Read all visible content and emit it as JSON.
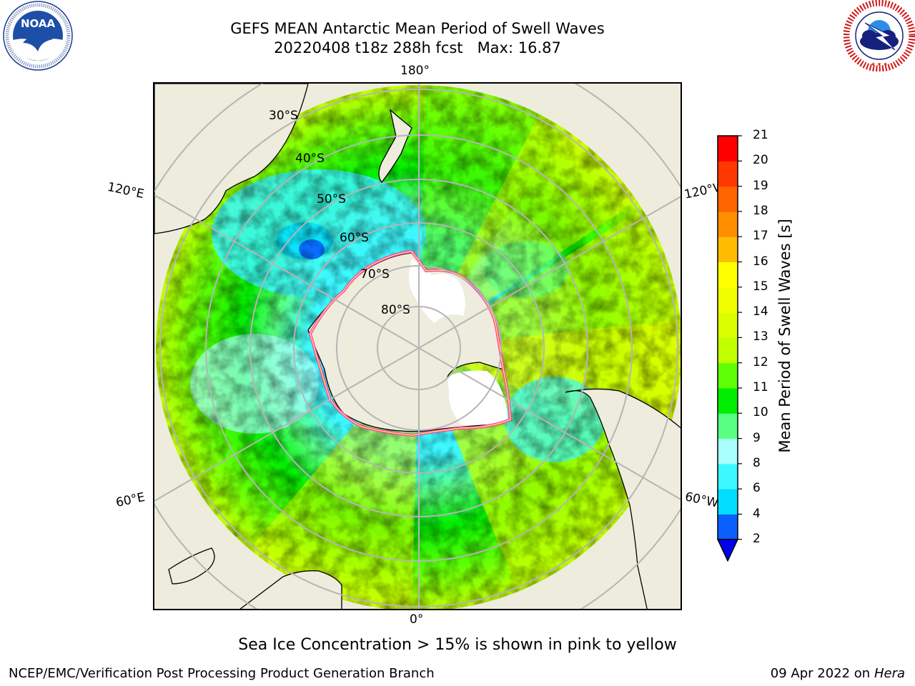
{
  "header": {
    "title_line1": "GEFS MEAN Antarctic Mean Period of Swell Waves",
    "title_line2": "20220408 t18z 288h fcst   Max: 16.87"
  },
  "logos": {
    "left": {
      "name": "NOAA",
      "ring_text": "NATIONAL OCEANIC AND ATMOSPHERIC ADMINISTRATION · U.S. DEPARTMENT OF COMMERCE"
    },
    "right": {
      "name": "NATIONAL WEATHER SERVICE"
    }
  },
  "map": {
    "projection": "south-polar-stereographic",
    "longitude_labels": {
      "top": "180°",
      "bottom": "0°",
      "left_upper": "120°E",
      "left_lower": "60°E",
      "right_upper": "120°W",
      "right_lower": "60°W"
    },
    "latitude_labels": [
      "30°S",
      "40°S",
      "50°S",
      "60°S",
      "70°S",
      "80°S"
    ],
    "colors": {
      "land": "#eeecdc",
      "ice": "#ffffff",
      "gridline": "#b5b5b5",
      "coast": "#000000",
      "sea_ice_edge": [
        "#ff33cc",
        "#ffe03a"
      ]
    }
  },
  "colorbar": {
    "title": "Mean Period of Swell Waves [s]",
    "ticks": [
      "2",
      "4",
      "6",
      "8",
      "9",
      "10",
      "11",
      "12",
      "13",
      "14",
      "15",
      "16",
      "17",
      "18",
      "19",
      "20",
      "21"
    ],
    "colors": [
      "#0a5fff",
      "#00ddff",
      "#3cf8ff",
      "#a8fffb",
      "#58ff82",
      "#00ee00",
      "#5fff05",
      "#c2ff00",
      "#dcff00",
      "#f0ff00",
      "#ffff00",
      "#ffbc00",
      "#ff8e00",
      "#ff6400",
      "#ff3700",
      "#ff0000"
    ],
    "under_color": "#0000ee"
  },
  "footer": {
    "note": "Sea Ice Concentration > 15% is shown in pink to yellow",
    "credit": "NCEP/EMC/Verification Post Processing Product Generation Branch",
    "date_prefix": "09 Apr 2022 on ",
    "machine": "Hera"
  }
}
